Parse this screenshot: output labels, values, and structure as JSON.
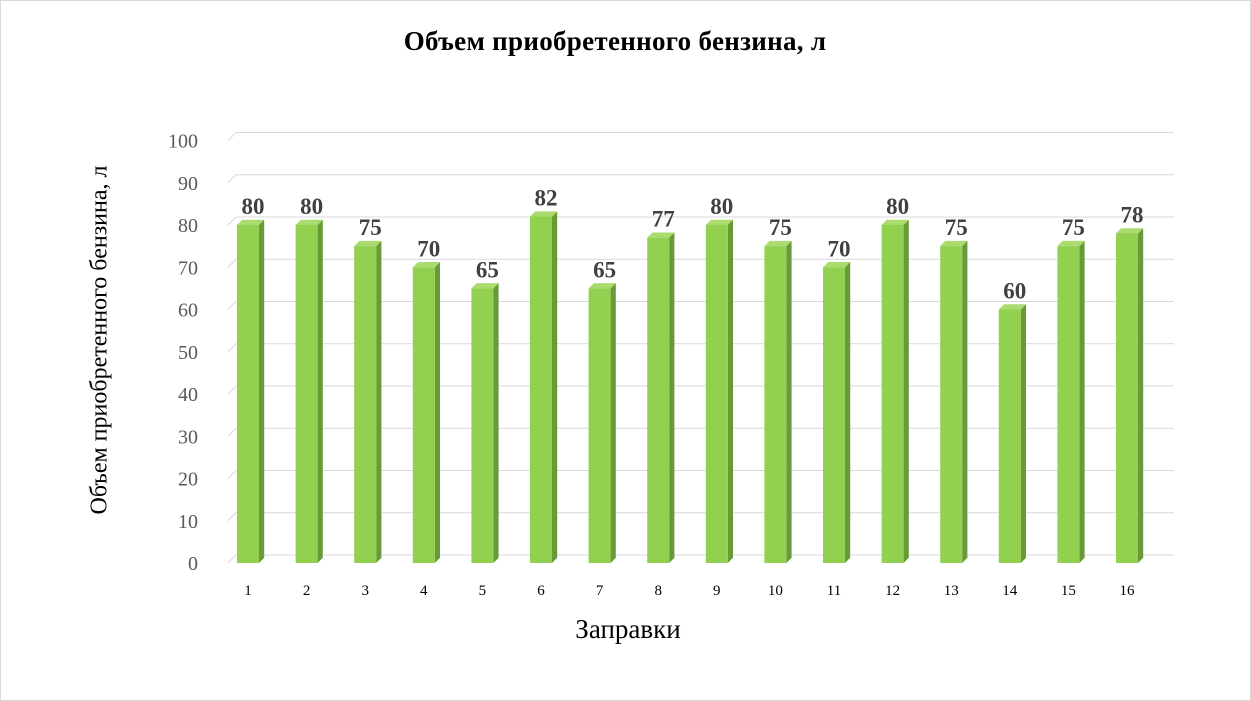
{
  "chart_data": {
    "type": "bar",
    "title": "Объем приобретенного бензина, л",
    "xlabel": "Заправки",
    "ylabel": "Объем приобретенного бензина, л",
    "categories": [
      "1",
      "2",
      "3",
      "4",
      "5",
      "6",
      "7",
      "8",
      "9",
      "10",
      "11",
      "12",
      "13",
      "14",
      "15",
      "16"
    ],
    "values": [
      80,
      80,
      75,
      70,
      65,
      82,
      65,
      77,
      80,
      75,
      70,
      80,
      75,
      60,
      75,
      78
    ],
    "ylim": [
      0,
      100
    ],
    "yticks": [
      0,
      10,
      20,
      30,
      40,
      50,
      60,
      70,
      80,
      90,
      100
    ],
    "grid": true,
    "data_labels": true,
    "style": "3d-column",
    "colors": {
      "bar_front": "#92d050",
      "bar_side": "#6a9a38",
      "bar_top": "#a9db6e",
      "grid": "#d9d9d9"
    }
  }
}
